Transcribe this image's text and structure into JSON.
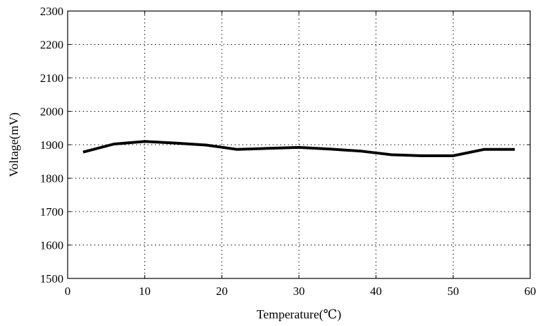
{
  "chart_data": {
    "type": "line",
    "xlabel": "Temperature(℃)",
    "ylabel": "Voltage(mV)",
    "xlim": [
      0,
      60
    ],
    "ylim": [
      1500,
      2300
    ],
    "xticks": [
      0,
      10,
      20,
      30,
      40,
      50,
      60
    ],
    "yticks": [
      1500,
      1600,
      1700,
      1800,
      1900,
      2000,
      2100,
      2200,
      2300
    ],
    "grid": true,
    "legend": "none",
    "series": [
      {
        "x": [
          2,
          6,
          10,
          14,
          18,
          22,
          26,
          30,
          34,
          38,
          42,
          46,
          50,
          54,
          58
        ],
        "y": [
          1878,
          1902,
          1910,
          1905,
          1899,
          1886,
          1889,
          1892,
          1887,
          1881,
          1870,
          1867,
          1867,
          1886,
          1886
        ]
      }
    ],
    "colors": {
      "line": "#000000",
      "grid": "#000000",
      "background": "#ffffff"
    }
  }
}
